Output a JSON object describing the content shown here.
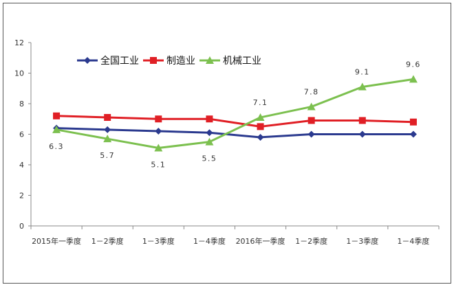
{
  "chart_data": {
    "type": "line",
    "categories": [
      "2015年一季度",
      "1－2季度",
      "1－3季度",
      "1－4季度",
      "2016年一季度",
      "1－2季度",
      "1－3季度",
      "1－4季度"
    ],
    "y_ticks": [
      "0",
      "2",
      "4",
      "6",
      "8",
      "10",
      "12"
    ],
    "ylim": [
      0,
      12
    ],
    "grid": false,
    "legend_position": "top-left",
    "series": [
      {
        "name": "全国工业",
        "values": [
          6.4,
          6.3,
          6.2,
          6.1,
          5.8,
          6.0,
          6.0,
          6.0
        ],
        "color": "#2b3a8f",
        "marker": "diamond"
      },
      {
        "name": "制造业",
        "values": [
          7.2,
          7.1,
          7.0,
          7.0,
          6.5,
          6.9,
          6.9,
          6.8
        ],
        "color": "#e01f25",
        "marker": "square"
      },
      {
        "name": "机械工业",
        "values": [
          6.3,
          5.7,
          5.1,
          5.5,
          7.1,
          7.8,
          9.1,
          9.6
        ],
        "color": "#7cc04f",
        "marker": "triangle",
        "labels": [
          "6.3",
          "5.7",
          "5.1",
          "5.5",
          "7.1",
          "7.8",
          "9.1",
          "9.6"
        ]
      }
    ]
  }
}
